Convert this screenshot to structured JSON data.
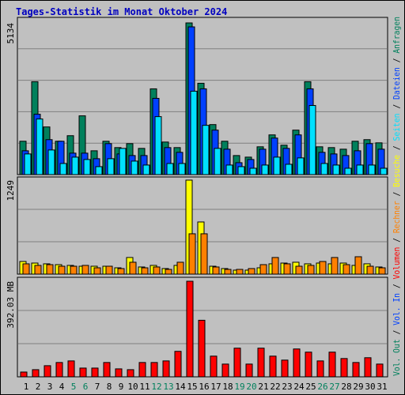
{
  "title": "Tages-Statistik im Monat Oktober 2024",
  "categories": [
    "1",
    "2",
    "3",
    "4",
    "5",
    "6",
    "7",
    "8",
    "9",
    "10",
    "11",
    "12",
    "13",
    "14",
    "15",
    "16",
    "17",
    "18",
    "19",
    "20",
    "21",
    "22",
    "23",
    "24",
    "25",
    "26",
    "27",
    "28",
    "29",
    "30",
    "31"
  ],
  "category_colors": [
    "#000000",
    "#000000",
    "#000000",
    "#000000",
    "#00805c",
    "#00805c",
    "#000000",
    "#000000",
    "#000000",
    "#000000",
    "#000000",
    "#00805c",
    "#00805c",
    "#000000",
    "#000000",
    "#000000",
    "#000000",
    "#000000",
    "#00805c",
    "#00805c",
    "#000000",
    "#000000",
    "#000000",
    "#000000",
    "#000000",
    "#00805c",
    "#00805c",
    "#000000",
    "#000000",
    "#000000",
    "#000000"
  ],
  "legend_separator": "/",
  "chart_data": [
    {
      "type": "bar",
      "ylim": [
        0,
        5134
      ],
      "yticks": [
        5134
      ],
      "series": [
        {
          "name": "Anfragen",
          "color": "#00805c",
          "values": [
            1129,
            3145,
            1613,
            1129,
            1317,
            1989,
            806,
            1129,
            914,
            1048,
            887,
            2903,
            1102,
            914,
            5134,
            3091,
            1693,
            1129,
            645,
            591,
            941,
            1344,
            995,
            1505,
            3145,
            941,
            914,
            860,
            1129,
            1183,
            1075
          ]
        },
        {
          "name": "Dateien",
          "color": "#0040ff",
          "values": [
            806,
            2043,
            1183,
            1129,
            726,
            726,
            538,
            1048,
            699,
            645,
            645,
            2581,
            914,
            753,
            5000,
            2903,
            1505,
            860,
            403,
            511,
            860,
            1236,
            887,
            1344,
            2903,
            753,
            699,
            645,
            806,
            1048,
            860
          ]
        },
        {
          "name": "Seiten",
          "color": "#00e0ff",
          "values": [
            699,
            1882,
            833,
            376,
            591,
            511,
            269,
            538,
            887,
            457,
            323,
            1962,
            376,
            376,
            2823,
            1667,
            887,
            323,
            269,
            215,
            323,
            591,
            349,
            565,
            2339,
            376,
            323,
            215,
            323,
            323,
            215
          ]
        }
      ]
    },
    {
      "type": "bar",
      "ylim": [
        0,
        1249
      ],
      "yticks": [
        1249
      ],
      "series": [
        {
          "name": "Besuche",
          "color": "#ffff00",
          "values": [
            168,
            147,
            137,
            126,
            116,
            105,
            105,
            105,
            84,
            221,
            95,
            116,
            74,
            116,
            1249,
            693,
            105,
            74,
            53,
            53,
            84,
            137,
            147,
            158,
            137,
            147,
            137,
            147,
            116,
            137,
            95
          ]
        },
        {
          "name": "Rechner",
          "color": "#ff8000",
          "values": [
            137,
            116,
            126,
            105,
            105,
            116,
            84,
            105,
            74,
            158,
            84,
            95,
            63,
            158,
            536,
            536,
            95,
            63,
            63,
            74,
            126,
            221,
            137,
            105,
            116,
            168,
            221,
            126,
            231,
            105,
            84
          ]
        }
      ]
    },
    {
      "type": "bar",
      "ylim": [
        0,
        392.03
      ],
      "yticks": [
        {
          "value": 392.03,
          "label": "392.03 MB"
        }
      ],
      "series": [
        {
          "name": "Volumen",
          "color": "#ff0000",
          "values": [
            19.6,
            29.4,
            45.7,
            58.8,
            65.3,
            35.9,
            35.9,
            58.8,
            32.7,
            29.4,
            58.8,
            58.8,
            65.3,
            104.5,
            392.03,
            232.0,
            84.9,
            52.3,
            117.6,
            52.3,
            117.6,
            84.9,
            68.6,
            114.3,
            101.3,
            65.3,
            101.3,
            75.1,
            58.8,
            78.4,
            52.3
          ]
        }
      ],
      "legend_only": [
        {
          "name": "Vol. In",
          "color": "#0040ff"
        },
        {
          "name": "Vol. Out",
          "color": "#00805c"
        }
      ]
    }
  ]
}
